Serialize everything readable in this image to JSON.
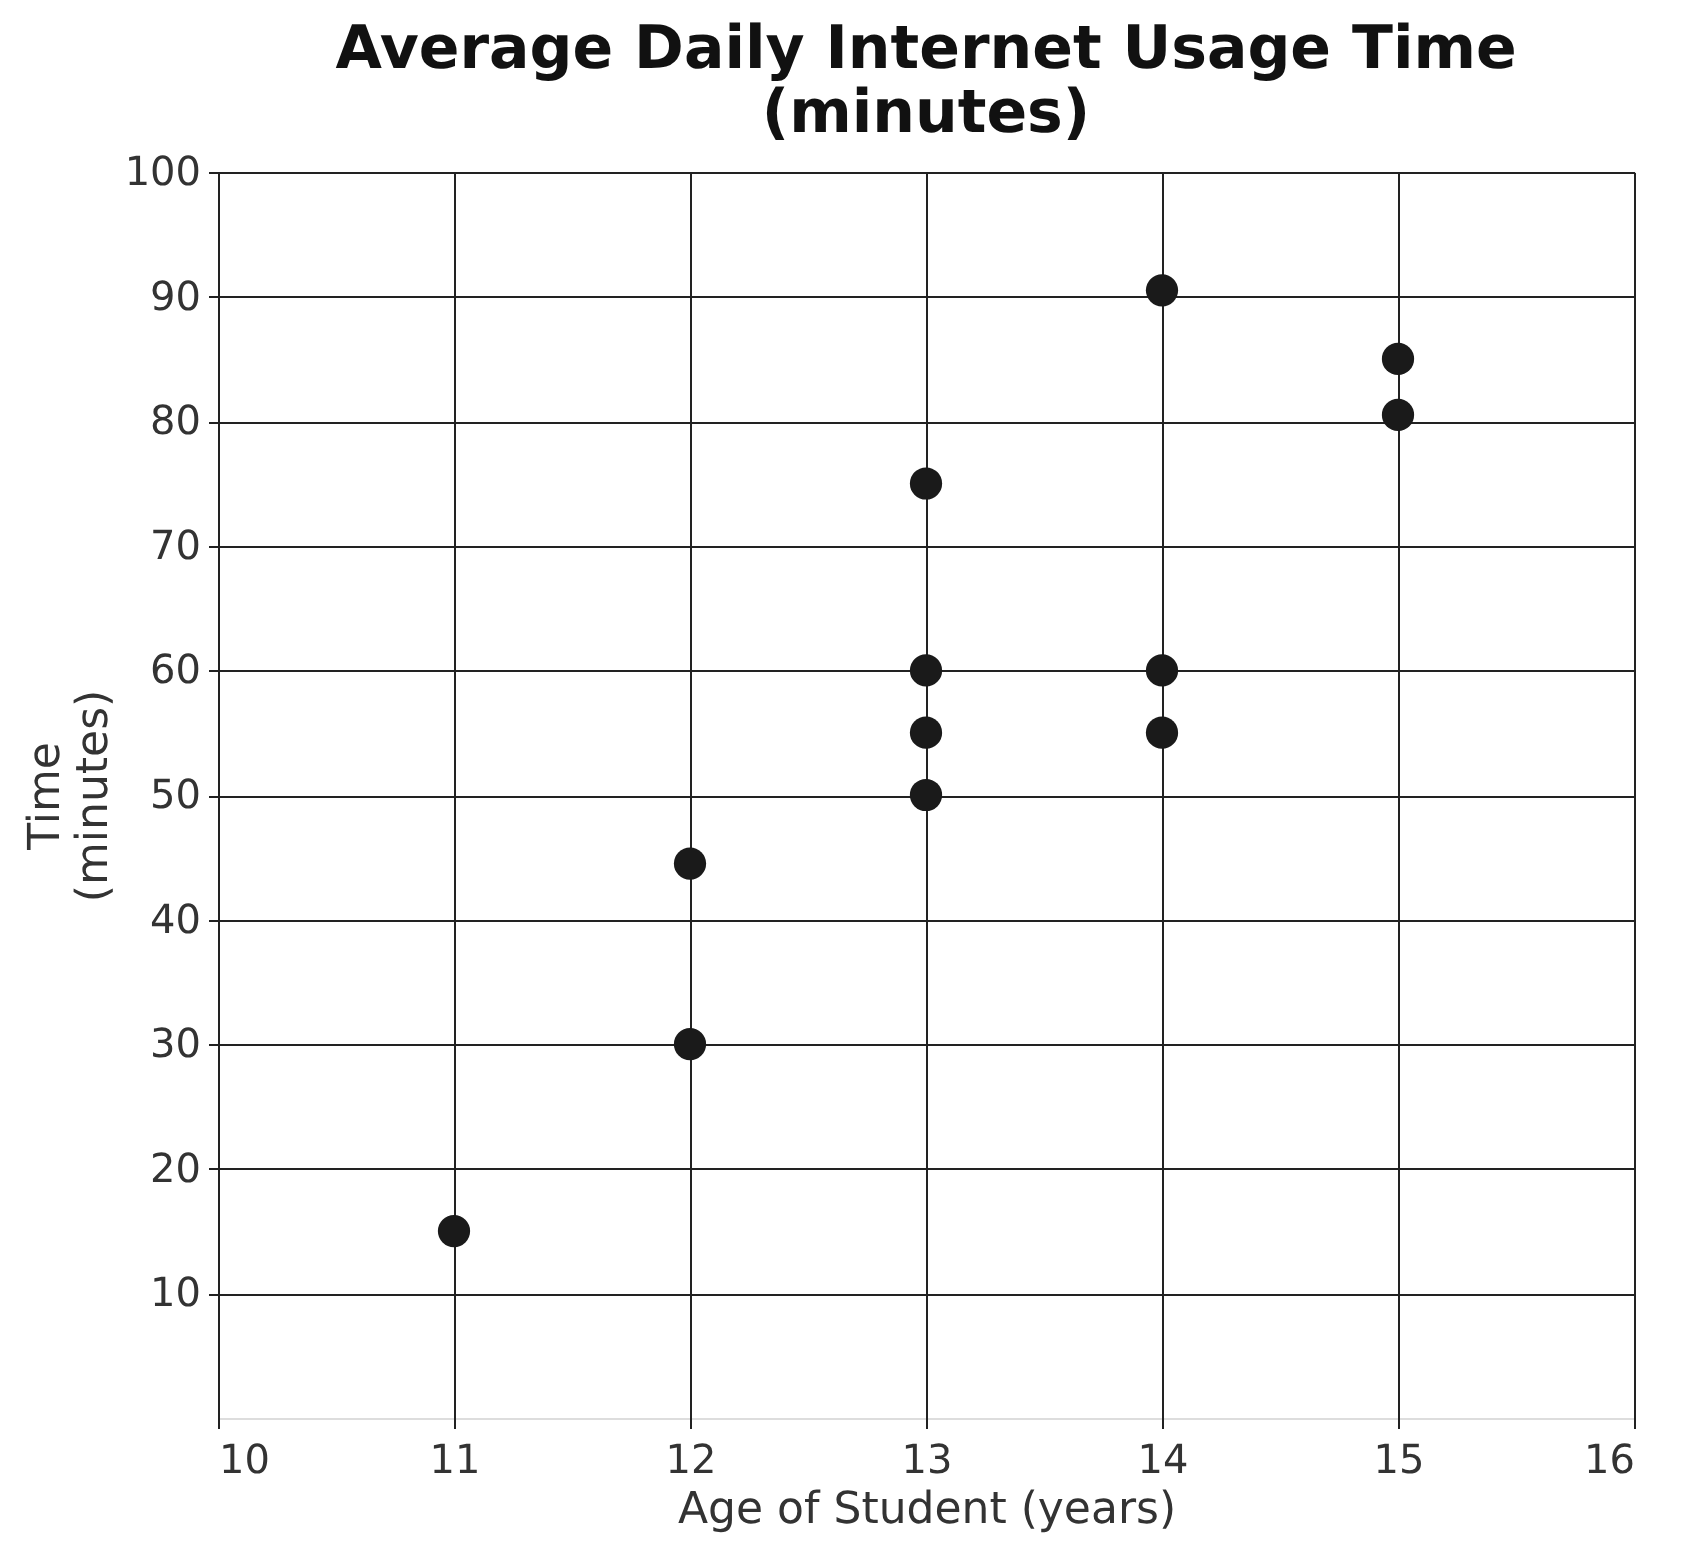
{
  "chart_data": {
    "type": "scatter",
    "title": "Average Daily Internet Usage Time\n(minutes)",
    "xlabel": "Age of Student (years)",
    "ylabel": "Time\n(minutes)",
    "x": [
      11,
      12,
      12,
      13,
      13,
      13,
      13,
      14,
      14,
      14,
      15,
      15
    ],
    "series": [
      {
        "color": "#1a1a1a",
        "values": [
          15,
          30,
          44.5,
          50,
          55,
          60,
          75,
          55,
          60,
          90.5,
          80.5,
          85
        ]
      }
    ],
    "xlim": [
      10,
      16
    ],
    "xticks": [
      10,
      11,
      12,
      13,
      14,
      15,
      16
    ],
    "ylim": [
      0,
      100
    ],
    "yticks": [
      10,
      20,
      30,
      40,
      50,
      60,
      70,
      80,
      90,
      100
    ],
    "grid": true,
    "marker": "circle"
  }
}
